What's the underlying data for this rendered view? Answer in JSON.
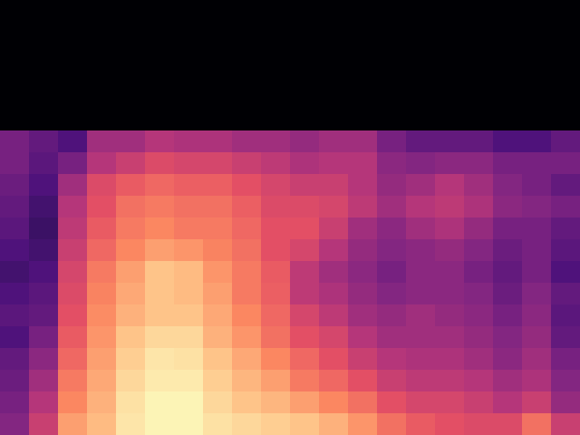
{
  "chart_data": {
    "type": "heatmap",
    "tick_labels": false,
    "color_range": [
      0,
      100
    ],
    "cells": [
      [
        0,
        0,
        0,
        0,
        0,
        0,
        0,
        0,
        0,
        0,
        0,
        0,
        0,
        0,
        0,
        0,
        0,
        0,
        0,
        0
      ],
      [
        0,
        0,
        0,
        0,
        0,
        0,
        0,
        0,
        0,
        0,
        0,
        0,
        0,
        0,
        0,
        0,
        0,
        0,
        0,
        0
      ],
      [
        0,
        0,
        0,
        0,
        0,
        0,
        0,
        0,
        0,
        0,
        0,
        0,
        0,
        0,
        0,
        0,
        0,
        0,
        0,
        0
      ],
      [
        0,
        0,
        0,
        0,
        0,
        0,
        0,
        0,
        0,
        0,
        0,
        0,
        0,
        0,
        0,
        0,
        0,
        0,
        0,
        0
      ],
      [
        0,
        0,
        0,
        0,
        0,
        0,
        0,
        0,
        0,
        0,
        0,
        0,
        0,
        0,
        0,
        0,
        0,
        0,
        0,
        0
      ],
      [
        0,
        0,
        0,
        0,
        0,
        0,
        0,
        0,
        0,
        0,
        0,
        0,
        0,
        0,
        0,
        0,
        0,
        0,
        0,
        0
      ],
      [
        35,
        30,
        25,
        45,
        45,
        50,
        48,
        48,
        45,
        45,
        42,
        45,
        45,
        35,
        30,
        30,
        30,
        25,
        25,
        30
      ],
      [
        35,
        28,
        35,
        50,
        55,
        60,
        58,
        58,
        55,
        52,
        48,
        50,
        50,
        40,
        38,
        40,
        40,
        35,
        35,
        35
      ],
      [
        32,
        25,
        45,
        60,
        65,
        68,
        66,
        66,
        62,
        58,
        55,
        55,
        50,
        42,
        45,
        50,
        45,
        38,
        35,
        30
      ],
      [
        30,
        22,
        50,
        62,
        70,
        72,
        70,
        70,
        66,
        60,
        60,
        58,
        52,
        45,
        50,
        52,
        48,
        40,
        38,
        35
      ],
      [
        28,
        20,
        52,
        65,
        72,
        75,
        72,
        72,
        68,
        62,
        62,
        55,
        45,
        40,
        45,
        48,
        42,
        35,
        35,
        30
      ],
      [
        25,
        22,
        55,
        68,
        75,
        80,
        78,
        74,
        70,
        62,
        58,
        50,
        42,
        38,
        40,
        42,
        38,
        32,
        35,
        28
      ],
      [
        22,
        25,
        58,
        72,
        80,
        88,
        86,
        78,
        72,
        65,
        52,
        45,
        40,
        35,
        40,
        40,
        35,
        30,
        35,
        25
      ],
      [
        25,
        28,
        60,
        74,
        82,
        88,
        86,
        80,
        72,
        66,
        52,
        48,
        42,
        38,
        40,
        40,
        38,
        32,
        38,
        30
      ],
      [
        28,
        30,
        62,
        76,
        84,
        88,
        88,
        82,
        75,
        68,
        58,
        52,
        45,
        42,
        45,
        42,
        40,
        35,
        40,
        28
      ],
      [
        25,
        35,
        65,
        78,
        88,
        92,
        92,
        84,
        78,
        70,
        62,
        58,
        50,
        45,
        45,
        45,
        42,
        38,
        42,
        30
      ],
      [
        30,
        40,
        68,
        80,
        90,
        95,
        94,
        88,
        82,
        75,
        68,
        62,
        55,
        50,
        48,
        48,
        45,
        40,
        45,
        35
      ],
      [
        32,
        45,
        72,
        82,
        92,
        96,
        96,
        90,
        85,
        80,
        72,
        68,
        62,
        55,
        52,
        52,
        50,
        45,
        48,
        38
      ],
      [
        35,
        50,
        75,
        84,
        94,
        98,
        98,
        92,
        88,
        85,
        80,
        75,
        70,
        62,
        58,
        58,
        55,
        50,
        55,
        42
      ],
      [
        38,
        55,
        80,
        86,
        95,
        98,
        98,
        94,
        92,
        90,
        88,
        84,
        78,
        70,
        65,
        62,
        60,
        60,
        70,
        55
      ]
    ]
  }
}
